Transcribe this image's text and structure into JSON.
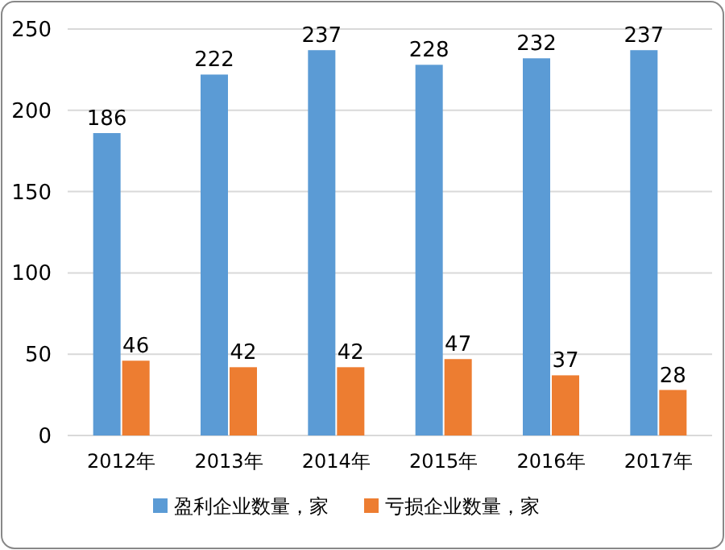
{
  "chart_data": {
    "type": "bar",
    "categories": [
      "2012年",
      "2013年",
      "2014年",
      "2015年",
      "2016年",
      "2017年"
    ],
    "series": [
      {
        "name": "盈利企业数量，家",
        "color": "#5b9bd5",
        "values": [
          186,
          222,
          237,
          228,
          232,
          237
        ]
      },
      {
        "name": "亏损企业数量，家",
        "color": "#ed7d31",
        "values": [
          46,
          42,
          42,
          47,
          37,
          28
        ]
      }
    ],
    "ylim": [
      0,
      250
    ],
    "yticks": [
      0,
      50,
      100,
      150,
      200,
      250
    ],
    "grid": "y",
    "legend": "bottom",
    "data_labels": true
  }
}
